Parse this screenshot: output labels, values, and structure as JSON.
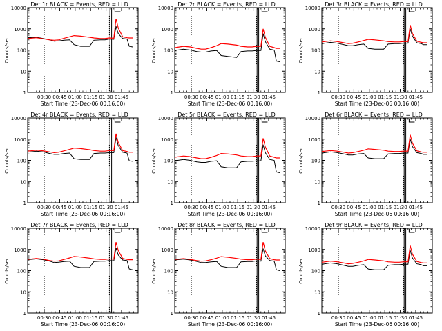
{
  "chart_data": [
    {
      "type": "line",
      "title": "Det 1r BLACK = Events, RED = LLD",
      "xlabel": "Start Time (23-Dec-06 00:16:00)",
      "ylabel": "Counts/sec",
      "yscale": "log",
      "ylim": [
        1,
        10000
      ],
      "x_tick_labels": [
        "00:30",
        "00:45",
        "01:00",
        "01:15",
        "01:30",
        "01:45"
      ],
      "y_tick_labels": [
        "1",
        "10",
        "100",
        "1000",
        "10000"
      ],
      "series": [
        {
          "color": "#000000",
          "x": [
            0,
            8,
            14,
            20,
            24,
            28,
            33,
            38,
            42,
            48,
            56,
            60,
            66,
            70,
            74,
            78,
            80,
            82,
            86,
            90,
            92,
            95
          ],
          "y": [
            380,
            400,
            350,
            300,
            260,
            270,
            290,
            300,
            180,
            150,
            150,
            290,
            300,
            300,
            330,
            320,
            1300,
            600,
            350,
            330,
            150,
            140
          ]
        },
        {
          "color": "#ff0000",
          "x": [
            0,
            8,
            14,
            20,
            24,
            28,
            33,
            38,
            42,
            48,
            56,
            60,
            66,
            70,
            74,
            78,
            80,
            82,
            86,
            90,
            92,
            95
          ],
          "y": [
            350,
            380,
            340,
            300,
            290,
            300,
            360,
            420,
            480,
            450,
            400,
            370,
            350,
            350,
            370,
            360,
            3000,
            1100,
            420,
            380,
            370,
            370
          ]
        }
      ]
    },
    {
      "type": "line",
      "title": "Det 2r BLACK = Events, RED = LLD",
      "xlabel": "Start Time (23-Dec-06 00:16:00)",
      "ylabel": "Counts/sec",
      "yscale": "log",
      "ylim": [
        1,
        10000
      ],
      "x_tick_labels": [
        "00:30",
        "00:45",
        "01:00",
        "01:15",
        "01:30",
        "01:45"
      ],
      "y_tick_labels": [
        "1",
        "10",
        "100",
        "1000",
        "10000"
      ],
      "series": [
        {
          "color": "#000000",
          "x": [
            0,
            8,
            14,
            20,
            24,
            28,
            33,
            38,
            42,
            48,
            56,
            60,
            66,
            70,
            74,
            78,
            80,
            82,
            86,
            90,
            92,
            95
          ],
          "y": [
            95,
            110,
            100,
            85,
            80,
            80,
            90,
            95,
            55,
            50,
            45,
            85,
            90,
            90,
            95,
            95,
            600,
            250,
            110,
            100,
            30,
            28
          ]
        },
        {
          "color": "#ff0000",
          "x": [
            0,
            8,
            14,
            20,
            24,
            28,
            33,
            38,
            42,
            48,
            56,
            60,
            66,
            70,
            74,
            78,
            80,
            82,
            86,
            90,
            92,
            95
          ],
          "y": [
            130,
            150,
            140,
            120,
            110,
            110,
            130,
            160,
            200,
            190,
            170,
            150,
            140,
            140,
            150,
            150,
            1000,
            400,
            150,
            130,
            120,
            120
          ]
        }
      ]
    },
    {
      "type": "line",
      "title": "Det 3r BLACK = Events, RED = LLD",
      "xlabel": "Start Time (23-Dec-06 00:16:00)",
      "ylabel": "Counts/sec",
      "yscale": "log",
      "ylim": [
        1,
        10000
      ],
      "x_tick_labels": [
        "00:30",
        "00:45",
        "01:00",
        "01:15",
        "01:30",
        "01:45"
      ],
      "y_tick_labels": [
        "1",
        "10",
        "100",
        "1000",
        "10000"
      ],
      "series": [
        {
          "color": "#000000",
          "x": [
            0,
            8,
            14,
            20,
            24,
            28,
            33,
            38,
            42,
            48,
            56,
            60,
            66,
            70,
            74,
            78,
            80,
            82,
            86,
            90,
            92,
            95
          ],
          "y": [
            200,
            230,
            210,
            180,
            160,
            160,
            180,
            190,
            120,
            110,
            110,
            190,
            200,
            200,
            210,
            210,
            1000,
            450,
            220,
            200,
            180,
            180
          ]
        },
        {
          "color": "#ff0000",
          "x": [
            0,
            8,
            14,
            20,
            24,
            28,
            33,
            38,
            42,
            48,
            56,
            60,
            66,
            70,
            74,
            78,
            80,
            82,
            86,
            90,
            92,
            95
          ],
          "y": [
            240,
            270,
            250,
            220,
            200,
            210,
            240,
            280,
            320,
            300,
            270,
            250,
            240,
            240,
            250,
            250,
            1500,
            600,
            260,
            230,
            220,
            220
          ]
        }
      ]
    },
    {
      "type": "line",
      "title": "Det 4r BLACK = Events, RED = LLD",
      "xlabel": "Start Time (23-Dec-06 00:16:00)",
      "ylabel": "Counts/sec",
      "yscale": "log",
      "ylim": [
        1,
        10000
      ],
      "x_tick_labels": [
        "00:30",
        "00:45",
        "01:00",
        "01:15",
        "01:30",
        "01:45"
      ],
      "y_tick_labels": [
        "1",
        "10",
        "100",
        "1000",
        "10000"
      ],
      "series": [
        {
          "color": "#000000",
          "x": [
            0,
            8,
            14,
            20,
            24,
            28,
            33,
            38,
            42,
            48,
            56,
            60,
            66,
            70,
            74,
            78,
            80,
            82,
            86,
            90,
            92,
            95
          ],
          "y": [
            240,
            270,
            250,
            210,
            190,
            190,
            210,
            220,
            120,
            110,
            110,
            210,
            220,
            220,
            230,
            230,
            1200,
            500,
            240,
            220,
            95,
            90
          ]
        },
        {
          "color": "#ff0000",
          "x": [
            0,
            8,
            14,
            20,
            24,
            28,
            33,
            38,
            42,
            48,
            56,
            60,
            66,
            70,
            74,
            78,
            80,
            82,
            86,
            90,
            92,
            95
          ],
          "y": [
            270,
            300,
            280,
            250,
            230,
            240,
            280,
            330,
            380,
            360,
            320,
            290,
            270,
            270,
            290,
            290,
            1800,
            700,
            290,
            260,
            240,
            240
          ]
        }
      ]
    },
    {
      "type": "line",
      "title": "Det 5r BLACK = Events, RED = LLD",
      "xlabel": "Start Time (23-Dec-06 00:16:00)",
      "ylabel": "Counts/sec",
      "yscale": "log",
      "ylim": [
        1,
        10000
      ],
      "x_tick_labels": [
        "00:30",
        "00:45",
        "01:00",
        "01:15",
        "01:30",
        "01:45"
      ],
      "y_tick_labels": [
        "1",
        "10",
        "100",
        "1000",
        "10000"
      ],
      "series": [
        {
          "color": "#000000",
          "x": [
            0,
            8,
            14,
            20,
            24,
            28,
            33,
            38,
            42,
            48,
            56,
            60,
            66,
            70,
            74,
            78,
            80,
            82,
            86,
            90,
            92,
            95
          ],
          "y": [
            95,
            110,
            100,
            85,
            80,
            80,
            90,
            95,
            50,
            45,
            45,
            85,
            90,
            90,
            95,
            95,
            550,
            230,
            110,
            100,
            28,
            26
          ]
        },
        {
          "color": "#ff0000",
          "x": [
            0,
            8,
            14,
            20,
            24,
            28,
            33,
            38,
            42,
            48,
            56,
            60,
            66,
            70,
            74,
            78,
            80,
            82,
            86,
            90,
            92,
            95
          ],
          "y": [
            140,
            160,
            150,
            130,
            120,
            120,
            140,
            170,
            210,
            200,
            180,
            160,
            150,
            150,
            160,
            160,
            1100,
            430,
            160,
            140,
            130,
            130
          ]
        }
      ]
    },
    {
      "type": "line",
      "title": "Det 6r BLACK = Events, RED = LLD",
      "xlabel": "Start Time (23-Dec-06 00:16:00)",
      "ylabel": "Counts/sec",
      "yscale": "log",
      "ylim": [
        1,
        10000
      ],
      "x_tick_labels": [
        "00:30",
        "00:45",
        "01:00",
        "01:15",
        "01:30",
        "01:45"
      ],
      "y_tick_labels": [
        "1",
        "10",
        "100",
        "1000",
        "10000"
      ],
      "series": [
        {
          "color": "#000000",
          "x": [
            0,
            8,
            14,
            20,
            24,
            28,
            33,
            38,
            42,
            48,
            56,
            60,
            66,
            70,
            74,
            78,
            80,
            82,
            86,
            90,
            92,
            95
          ],
          "y": [
            220,
            250,
            230,
            200,
            180,
            180,
            200,
            210,
            130,
            120,
            120,
            200,
            210,
            210,
            220,
            220,
            1000,
            450,
            230,
            210,
            190,
            190
          ]
        },
        {
          "color": "#ff0000",
          "x": [
            0,
            8,
            14,
            20,
            24,
            28,
            33,
            38,
            42,
            48,
            56,
            60,
            66,
            70,
            74,
            78,
            80,
            82,
            86,
            90,
            92,
            95
          ],
          "y": [
            260,
            290,
            270,
            240,
            220,
            230,
            260,
            300,
            350,
            330,
            300,
            270,
            260,
            260,
            270,
            270,
            1600,
            650,
            280,
            250,
            240,
            240
          ]
        }
      ]
    },
    {
      "type": "line",
      "title": "Det 7r BLACK = Events, RED = LLD",
      "xlabel": "Start Time (23-Dec-06 00:16:00)",
      "ylabel": "Counts/sec",
      "yscale": "log",
      "ylim": [
        1,
        10000
      ],
      "x_tick_labels": [
        "00:30",
        "00:45",
        "01:00",
        "01:15",
        "01:30",
        "01:45"
      ],
      "y_tick_labels": [
        "1",
        "10",
        "100",
        "1000",
        "10000"
      ],
      "series": [
        {
          "color": "#000000",
          "x": [
            0,
            8,
            14,
            20,
            24,
            28,
            33,
            38,
            42,
            48,
            56,
            60,
            66,
            70,
            74,
            78,
            80,
            82,
            86,
            90,
            92,
            95
          ],
          "y": [
            330,
            360,
            330,
            280,
            240,
            250,
            270,
            280,
            160,
            140,
            140,
            270,
            280,
            280,
            300,
            290,
            1200,
            550,
            320,
            300,
            120,
            110
          ]
        },
        {
          "color": "#ff0000",
          "x": [
            0,
            8,
            14,
            20,
            24,
            28,
            33,
            38,
            42,
            48,
            56,
            60,
            66,
            70,
            74,
            78,
            80,
            82,
            86,
            90,
            92,
            95
          ],
          "y": [
            340,
            380,
            350,
            300,
            280,
            290,
            340,
            400,
            470,
            440,
            390,
            360,
            340,
            340,
            360,
            350,
            2200,
            900,
            380,
            340,
            330,
            330
          ]
        }
      ]
    },
    {
      "type": "line",
      "title": "Det 8r BLACK = Events, RED = LLD",
      "xlabel": "Start Time (23-Dec-06 00:16:00)",
      "ylabel": "Counts/sec",
      "yscale": "log",
      "ylim": [
        1,
        10000
      ],
      "x_tick_labels": [
        "00:30",
        "00:45",
        "01:00",
        "01:15",
        "01:30",
        "01:45"
      ],
      "y_tick_labels": [
        "1",
        "10",
        "100",
        "1000",
        "10000"
      ],
      "series": [
        {
          "color": "#000000",
          "x": [
            0,
            8,
            14,
            20,
            24,
            28,
            33,
            38,
            42,
            48,
            56,
            60,
            66,
            70,
            74,
            78,
            80,
            82,
            86,
            90,
            92,
            95
          ],
          "y": [
            320,
            350,
            320,
            270,
            240,
            240,
            260,
            270,
            160,
            140,
            140,
            260,
            270,
            270,
            290,
            280,
            1100,
            500,
            300,
            280,
            110,
            100
          ]
        },
        {
          "color": "#ff0000",
          "x": [
            0,
            8,
            14,
            20,
            24,
            28,
            33,
            38,
            42,
            48,
            56,
            60,
            66,
            70,
            74,
            78,
            80,
            82,
            86,
            90,
            92,
            95
          ],
          "y": [
            340,
            370,
            340,
            300,
            280,
            290,
            330,
            390,
            460,
            430,
            380,
            350,
            330,
            330,
            350,
            340,
            2200,
            850,
            370,
            330,
            320,
            320
          ]
        }
      ]
    },
    {
      "type": "line",
      "title": "Det 9r BLACK = Events, RED = LLD",
      "xlabel": "Start Time (23-Dec-06 00:16:00)",
      "ylabel": "Counts/sec",
      "yscale": "log",
      "ylim": [
        1,
        10000
      ],
      "x_tick_labels": [
        "00:30",
        "00:45",
        "01:00",
        "01:15",
        "01:30",
        "01:45"
      ],
      "y_tick_labels": [
        "1",
        "10",
        "100",
        "1000",
        "10000"
      ],
      "series": [
        {
          "color": "#000000",
          "x": [
            0,
            8,
            14,
            20,
            24,
            28,
            33,
            38,
            42,
            48,
            56,
            60,
            66,
            70,
            74,
            78,
            80,
            82,
            86,
            90,
            92,
            95
          ],
          "y": [
            200,
            230,
            210,
            180,
            160,
            160,
            180,
            190,
            120,
            110,
            110,
            180,
            190,
            190,
            200,
            200,
            900,
            400,
            210,
            190,
            170,
            170
          ]
        },
        {
          "color": "#ff0000",
          "x": [
            0,
            8,
            14,
            20,
            24,
            28,
            33,
            38,
            42,
            48,
            56,
            60,
            66,
            70,
            74,
            78,
            80,
            82,
            86,
            90,
            92,
            95
          ],
          "y": [
            250,
            280,
            260,
            230,
            210,
            220,
            250,
            290,
            340,
            320,
            290,
            260,
            250,
            250,
            260,
            260,
            1500,
            600,
            270,
            240,
            230,
            230
          ]
        }
      ]
    }
  ]
}
